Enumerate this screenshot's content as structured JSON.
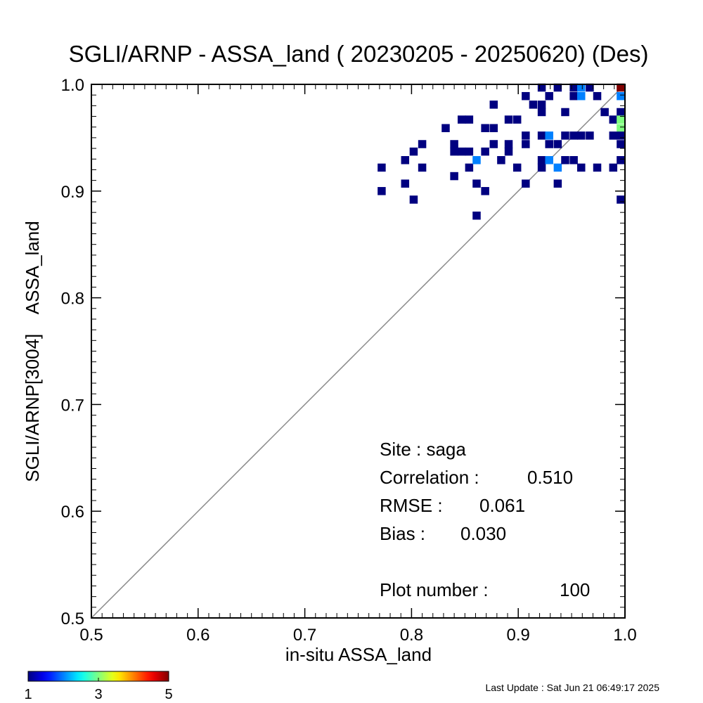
{
  "chart_data": {
    "type": "density-scatter",
    "title": "SGLI/ARNP - ASSA_land ( 20230205 - 20250620) (Des)",
    "x_label": "in-situ ASSA_land",
    "y_label": "SGLI/ARNP[3004]    ASSA_land",
    "xlim": [
      0.5,
      1.0
    ],
    "ylim": [
      0.5,
      1.0
    ],
    "xticks": [
      0.5,
      0.6,
      0.7,
      0.8,
      0.9,
      {
        "value": 1.0,
        "label": "1.0"
      }
    ],
    "yticks": [
      0.5,
      0.6,
      0.7,
      0.8,
      0.9,
      {
        "value": 1.0,
        "label": "1.0"
      }
    ],
    "x": [
      0.772,
      0.772,
      0.794,
      0.802,
      0.81,
      0.81,
      0.794,
      0.802,
      0.832,
      0.847,
      0.854,
      0.84,
      0.84,
      0.847,
      0.854,
      0.84,
      0.854,
      0.861,
      0.861,
      0.869,
      0.861,
      0.869,
      0.877,
      0.869,
      0.877,
      0.884,
      0.891,
      0.891,
      0.877,
      0.891,
      0.899,
      0.899,
      0.907,
      0.907,
      0.907,
      0.907,
      0.922,
      0.914,
      0.922,
      0.922,
      0.922,
      0.929,
      0.929,
      0.937,
      0.922,
      0.922,
      0.929,
      0.937,
      0.937,
      0.937,
      0.929,
      0.944,
      0.952,
      0.952,
      0.959,
      0.959,
      0.967,
      0.944,
      0.952,
      0.959,
      0.967,
      0.944,
      0.952,
      0.959,
      0.974,
      0.974,
      0.981,
      0.989,
      0.989,
      0.989,
      0.996,
      0.996,
      0.996,
      0.996,
      0.996,
      0.996,
      0.996,
      0.996,
      0.996
    ],
    "y": [
      0.922,
      0.9,
      0.929,
      0.937,
      0.944,
      0.922,
      0.907,
      0.892,
      0.959,
      0.967,
      0.967,
      0.944,
      0.937,
      0.937,
      0.937,
      0.914,
      0.922,
      0.929,
      0.907,
      0.9,
      0.877,
      0.959,
      0.959,
      0.937,
      0.944,
      0.929,
      0.944,
      0.937,
      0.981,
      0.967,
      0.967,
      0.922,
      0.952,
      0.944,
      0.907,
      0.989,
      0.997,
      0.981,
      0.981,
      0.974,
      0.952,
      0.952,
      0.944,
      0.944,
      0.929,
      0.922,
      0.929,
      0.922,
      0.907,
      0.997,
      0.989,
      0.974,
      0.989,
      0.997,
      0.997,
      0.989,
      0.997,
      0.952,
      0.952,
      0.952,
      0.952,
      0.929,
      0.929,
      0.922,
      0.922,
      0.989,
      0.974,
      0.922,
      0.952,
      0.967,
      0.997,
      0.989,
      0.974,
      0.967,
      0.959,
      0.952,
      0.944,
      0.929,
      0.892
    ],
    "counts": [
      1,
      1,
      1,
      1,
      1,
      1,
      1,
      1,
      1,
      1,
      1,
      1,
      1,
      1,
      1,
      1,
      1,
      2,
      1,
      1,
      1,
      1,
      1,
      1,
      1,
      1,
      1,
      1,
      1,
      1,
      1,
      1,
      1,
      1,
      1,
      1,
      1,
      1,
      1,
      1,
      1,
      2,
      1,
      1,
      1,
      1,
      2,
      2,
      1,
      1,
      1,
      1,
      1,
      1,
      2,
      2,
      1,
      1,
      1,
      1,
      1,
      1,
      1,
      1,
      1,
      1,
      1,
      1,
      1,
      1,
      5,
      2,
      1,
      3,
      3,
      1,
      1,
      1,
      1
    ],
    "colorbar": {
      "lim": [
        1,
        5
      ],
      "ticks": [
        1,
        3,
        5
      ]
    },
    "stats": [
      {
        "label": "Site : saga"
      },
      {
        "label": "Correlation :",
        "value": "0.510"
      },
      {
        "label": "RMSE :",
        "value": "0.061"
      },
      {
        "label": "Bias :",
        "value": "0.030"
      },
      {
        "label": "Plot number :",
        "value": "100"
      }
    ],
    "footer": "Last Update : Sat Jun 21 06:49:17 2025"
  }
}
